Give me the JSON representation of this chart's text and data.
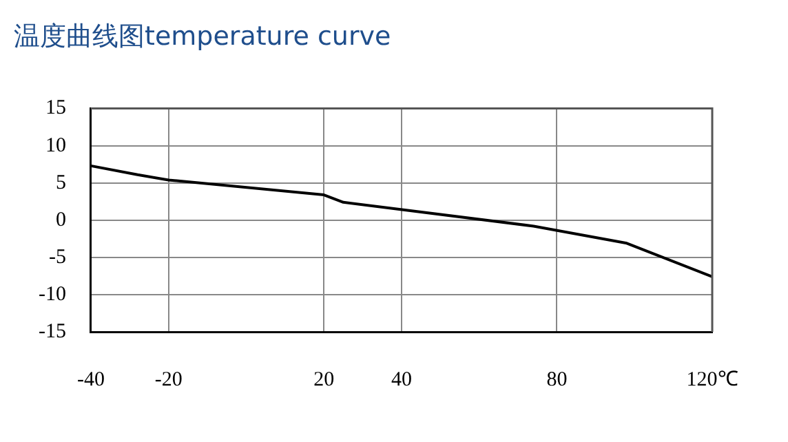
{
  "chart_data": {
    "type": "line",
    "title": "温度曲线图temperature curve",
    "series": [
      {
        "color": "#000000",
        "x": [
          -40,
          -28,
          -20,
          20,
          25,
          74,
          98,
          120
        ],
        "values": [
          7.3,
          6.1,
          5.4,
          3.4,
          2.4,
          -0.8,
          -3.1,
          -7.6
        ]
      }
    ],
    "xlim": [
      -40,
      120
    ],
    "xticks": [
      -40,
      -20,
      20,
      40,
      80,
      {
        "value": 120,
        "label": "120℃"
      }
    ],
    "ylim": [
      -15,
      15
    ],
    "yticks": [
      -15,
      -10,
      -5,
      0,
      5,
      10,
      15
    ],
    "grid": true,
    "line_style": "solid",
    "marker": "none",
    "legend": false
  }
}
